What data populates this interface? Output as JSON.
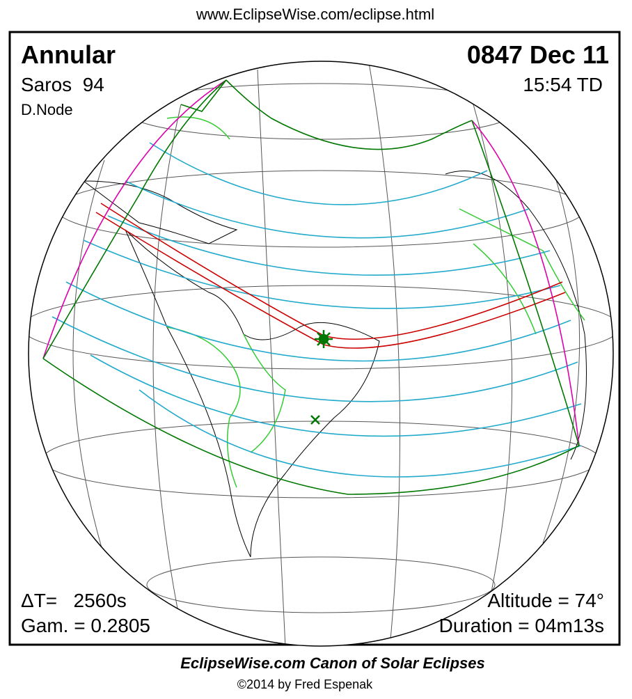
{
  "header": {
    "url": "www.EclipseWise.com/eclipse.html"
  },
  "panel": {
    "type": "Annular",
    "date": "0847 Dec 11",
    "saros": "Saros  94",
    "time": "15:54 TD",
    "node": "D.Node",
    "delta_t": "ΔT=   2560s",
    "gamma": "Gam. = 0.2805",
    "altitude": "Altitude = 74°",
    "duration": "Duration = 04m13s"
  },
  "footer": {
    "title": "EclipseWise.com Canon of Solar Eclipses",
    "credit": "©2014 by Fred Espenak"
  }
}
